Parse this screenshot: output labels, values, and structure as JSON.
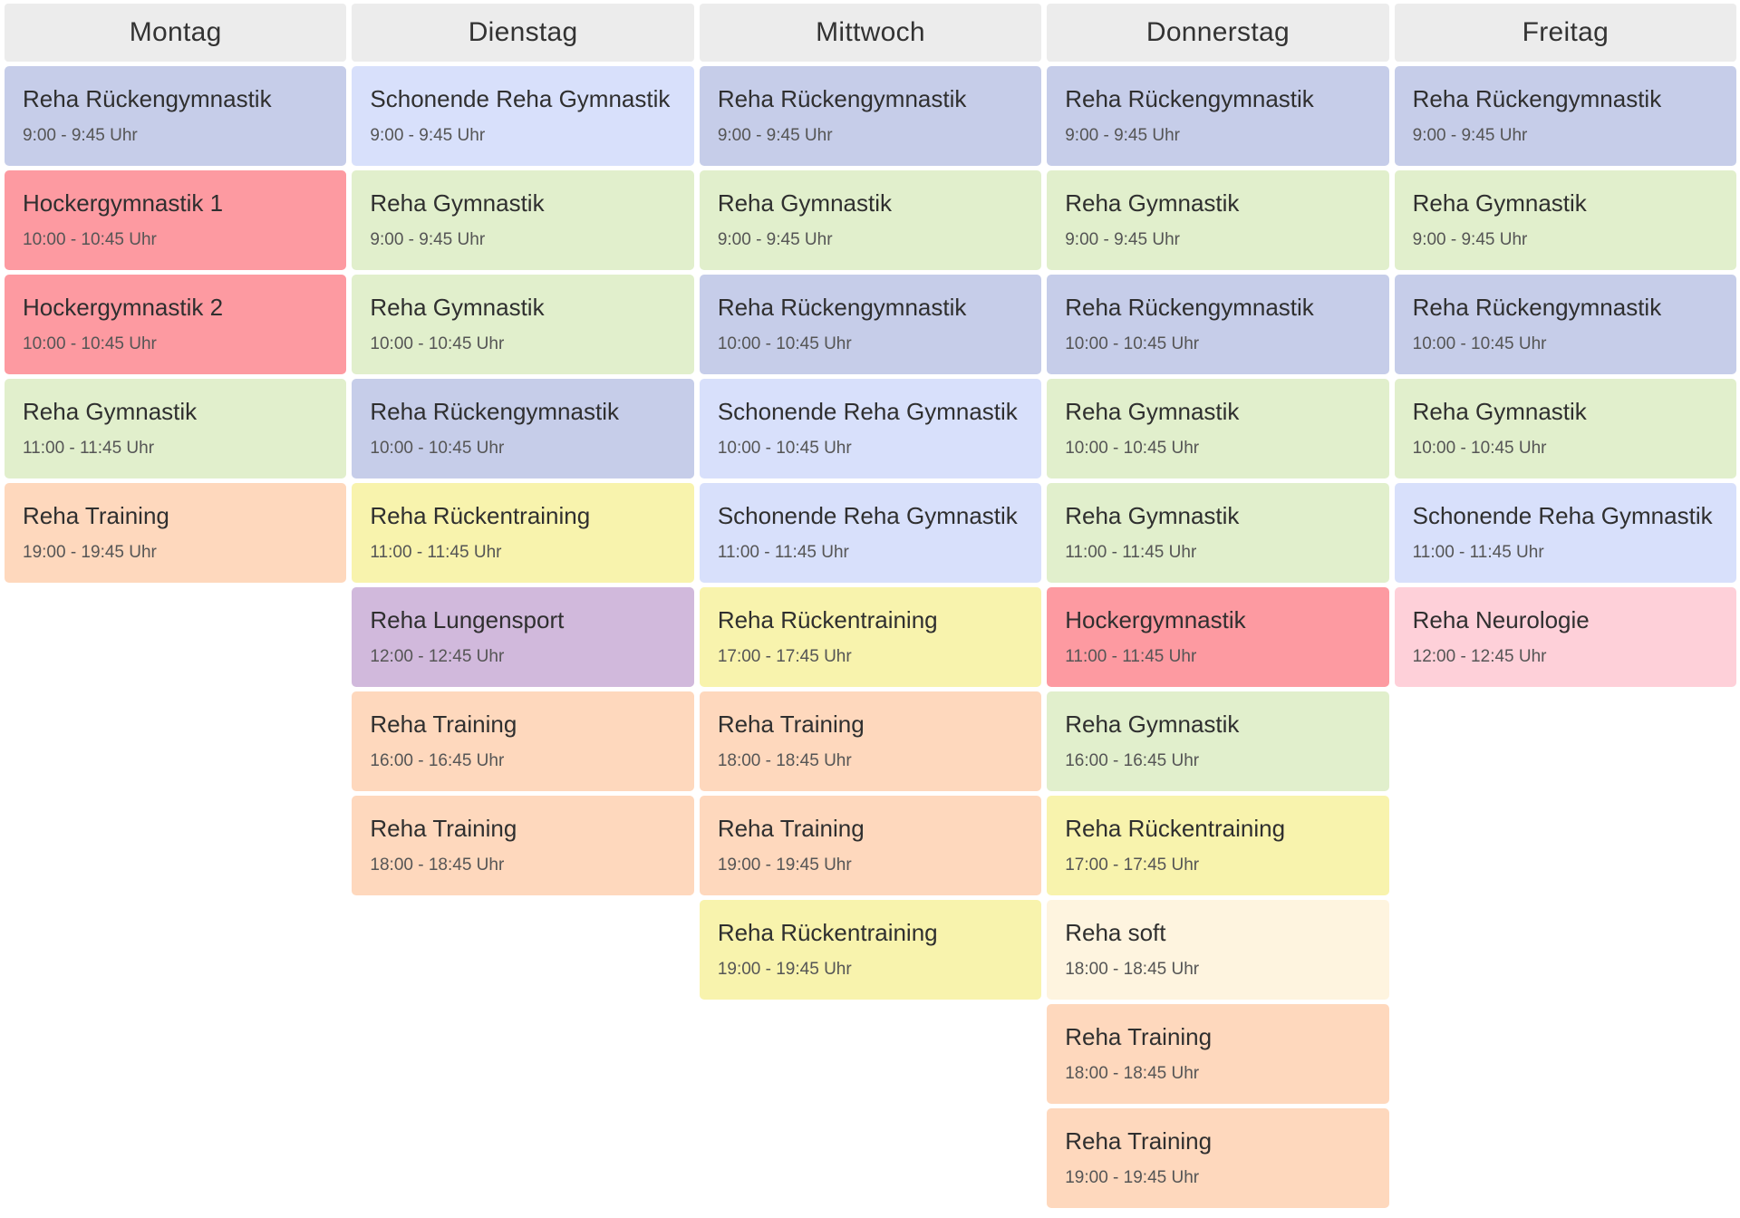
{
  "days": [
    {
      "name": "Montag",
      "courses": [
        {
          "title": "Reha Rückengymnastik",
          "time": "9:00 - 9:45 Uhr",
          "category": "rueckengym"
        },
        {
          "title": "Hockergymnastik 1",
          "time": "10:00 - 10:45 Uhr",
          "category": "hocker"
        },
        {
          "title": "Hockergymnastik 2",
          "time": "10:00 - 10:45 Uhr",
          "category": "hocker"
        },
        {
          "title": "Reha Gymnastik",
          "time": "11:00 - 11:45 Uhr",
          "category": "gym"
        },
        {
          "title": "Reha Training",
          "time": "19:00 - 19:45 Uhr",
          "category": "training"
        }
      ]
    },
    {
      "name": "Dienstag",
      "courses": [
        {
          "title": "Schonende Reha Gymnastik",
          "time": "9:00 - 9:45 Uhr",
          "category": "schonend"
        },
        {
          "title": "Reha Gymnastik",
          "time": "9:00 - 9:45 Uhr",
          "category": "gym"
        },
        {
          "title": "Reha Gymnastik",
          "time": "10:00 - 10:45 Uhr",
          "category": "gym"
        },
        {
          "title": "Reha Rückengymnastik",
          "time": "10:00 - 10:45 Uhr",
          "category": "rueckengym"
        },
        {
          "title": "Reha Rückentraining",
          "time": "11:00 - 11:45 Uhr",
          "category": "rueckentr"
        },
        {
          "title": "Reha Lungensport",
          "time": "12:00 - 12:45 Uhr",
          "category": "lunge"
        },
        {
          "title": "Reha Training",
          "time": "16:00 - 16:45 Uhr",
          "category": "training"
        },
        {
          "title": "Reha Training",
          "time": "18:00 - 18:45 Uhr",
          "category": "training"
        }
      ]
    },
    {
      "name": "Mittwoch",
      "courses": [
        {
          "title": "Reha Rückengymnastik",
          "time": "9:00 - 9:45 Uhr",
          "category": "rueckengym"
        },
        {
          "title": "Reha Gymnastik",
          "time": "9:00 - 9:45 Uhr",
          "category": "gym"
        },
        {
          "title": "Reha Rückengymnastik",
          "time": "10:00 - 10:45 Uhr",
          "category": "rueckengym"
        },
        {
          "title": "Schonende Reha Gymnastik",
          "time": "10:00 - 10:45 Uhr",
          "category": "schonend"
        },
        {
          "title": "Schonende Reha Gymnastik",
          "time": "11:00 - 11:45 Uhr",
          "category": "schonend"
        },
        {
          "title": "Reha Rückentraining",
          "time": "17:00 - 17:45 Uhr",
          "category": "rueckentr"
        },
        {
          "title": "Reha Training",
          "time": "18:00 - 18:45 Uhr",
          "category": "training"
        },
        {
          "title": "Reha Training",
          "time": "19:00 - 19:45 Uhr",
          "category": "training"
        },
        {
          "title": "Reha Rückentraining",
          "time": "19:00 - 19:45 Uhr",
          "category": "rueckentr"
        }
      ]
    },
    {
      "name": "Donnerstag",
      "courses": [
        {
          "title": "Reha Rückengymnastik",
          "time": "9:00 - 9:45 Uhr",
          "category": "rueckengym"
        },
        {
          "title": "Reha Gymnastik",
          "time": "9:00 - 9:45 Uhr",
          "category": "gym"
        },
        {
          "title": "Reha Rückengymnastik",
          "time": "10:00 - 10:45 Uhr",
          "category": "rueckengym"
        },
        {
          "title": "Reha Gymnastik",
          "time": "10:00 - 10:45 Uhr",
          "category": "gym"
        },
        {
          "title": "Reha Gymnastik",
          "time": "11:00 - 11:45 Uhr",
          "category": "gym"
        },
        {
          "title": "Hockergymnastik",
          "time": "11:00 - 11:45 Uhr",
          "category": "hocker"
        },
        {
          "title": "Reha Gymnastik",
          "time": "16:00 - 16:45 Uhr",
          "category": "gym"
        },
        {
          "title": "Reha Rückentraining",
          "time": "17:00 - 17:45 Uhr",
          "category": "rueckentr"
        },
        {
          "title": "Reha soft",
          "time": "18:00 - 18:45 Uhr",
          "category": "soft"
        },
        {
          "title": "Reha Training",
          "time": "18:00 - 18:45 Uhr",
          "category": "training"
        },
        {
          "title": "Reha Training",
          "time": "19:00 - 19:45 Uhr",
          "category": "training"
        }
      ]
    },
    {
      "name": "Freitag",
      "courses": [
        {
          "title": "Reha Rückengymnastik",
          "time": "9:00 - 9:45 Uhr",
          "category": "rueckengym"
        },
        {
          "title": "Reha Gymnastik",
          "time": "9:00 - 9:45 Uhr",
          "category": "gym"
        },
        {
          "title": "Reha Rückengymnastik",
          "time": "10:00 - 10:45 Uhr",
          "category": "rueckengym"
        },
        {
          "title": "Reha Gymnastik",
          "time": "10:00 - 10:45 Uhr",
          "category": "gym"
        },
        {
          "title": "Schonende Reha Gymnastik",
          "time": "11:00 - 11:45 Uhr",
          "category": "schonend"
        },
        {
          "title": "Reha Neurologie",
          "time": "12:00 - 12:45 Uhr",
          "category": "neuro"
        }
      ]
    }
  ],
  "colors": {
    "rueckengym": "#c6cde9",
    "schonend": "#d8e0fb",
    "gym": "#e1efcc",
    "hocker": "#fd9aa1",
    "training": "#fed8bd",
    "rueckentr": "#f8f3ad",
    "lunge": "#d1b9dc",
    "neuro": "#fed0d9",
    "soft": "#fef4df",
    "header_bg": "#ececec"
  }
}
